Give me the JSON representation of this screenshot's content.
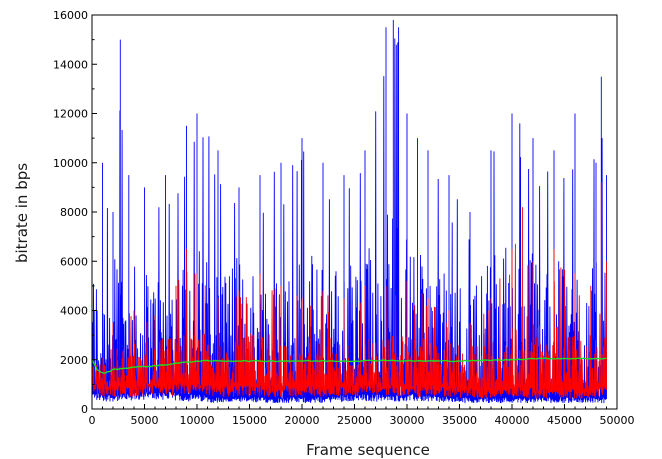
{
  "chart_data": {
    "type": "line",
    "title": "",
    "xlabel": "Frame sequence",
    "ylabel": "bitrate in bps",
    "xlim": [
      0,
      50000
    ],
    "ylim": [
      0,
      16000
    ],
    "x_ticks": [
      0,
      5000,
      10000,
      15000,
      20000,
      25000,
      30000,
      35000,
      40000,
      45000,
      50000
    ],
    "y_ticks": [
      0,
      2000,
      4000,
      6000,
      8000,
      10000,
      12000,
      14000,
      16000
    ],
    "x_tick_labels": [
      "0",
      "5000",
      "10000",
      "15000",
      "20000",
      "25000",
      "30000",
      "35000",
      "40000",
      "45000",
      "50000"
    ],
    "y_tick_labels": [
      "0",
      "2000",
      "4000",
      "6000",
      "8000",
      "10000",
      "12000",
      "14000",
      "16000"
    ],
    "grid": false,
    "legend": "none",
    "series": [
      {
        "color": "#0000ff",
        "style": "dense-bursty",
        "x": [
          0,
          1000,
          2000,
          2700,
          3500,
          5000,
          7000,
          9000,
          10000,
          12000,
          14000,
          16000,
          18000,
          20000,
          22000,
          24000,
          26000,
          28000,
          28700,
          29200,
          30000,
          31000,
          32000,
          34000,
          36000,
          38000,
          40000,
          42000,
          44000,
          46000,
          48000,
          48500,
          49000
        ],
        "peak": [
          7500,
          10000,
          8000,
          15000,
          9500,
          9000,
          9500,
          11500,
          12000,
          10500,
          9000,
          9500,
          10000,
          11000,
          10000,
          9500,
          10500,
          15500,
          15800,
          15500,
          12000,
          11000,
          10500,
          9500,
          8000,
          10500,
          12000,
          11000,
          10500,
          12000,
          10000,
          13500,
          9500
        ],
        "upper": [
          6000,
          6500,
          6000,
          6500,
          6000,
          5800,
          6000,
          6500,
          6800,
          6500,
          6200,
          6000,
          6000,
          6300,
          6200,
          6000,
          6500,
          8500,
          9000,
          8500,
          7000,
          6500,
          6000,
          5500,
          5000,
          6500,
          7000,
          6500,
          6000,
          6500,
          6000,
          6500,
          6000
        ],
        "lower": [
          600,
          500,
          500,
          500,
          500,
          600,
          600,
          500,
          500,
          400,
          400,
          400,
          400,
          400,
          400,
          500,
          500,
          500,
          500,
          500,
          500,
          500,
          500,
          400,
          400,
          400,
          400,
          400,
          400,
          400,
          400,
          400,
          400
        ]
      },
      {
        "color": "#ff0000",
        "style": "dense-bursty",
        "x": [
          0,
          2000,
          4000,
          6000,
          8000,
          9000,
          10000,
          12000,
          14000,
          16000,
          18000,
          20000,
          22000,
          24000,
          26000,
          28000,
          30000,
          32000,
          34000,
          36000,
          38000,
          40000,
          41000,
          42000,
          44000,
          46000,
          47500,
          48500,
          49000
        ],
        "peak": [
          2800,
          3500,
          4000,
          3800,
          5000,
          6500,
          5500,
          4500,
          4800,
          5500,
          5000,
          4500,
          4800,
          4500,
          5000,
          5000,
          5200,
          4500,
          4000,
          3500,
          4500,
          6500,
          8200,
          6000,
          6500,
          5500,
          5000,
          9200,
          6000
        ],
        "upper": [
          2200,
          2600,
          2800,
          2800,
          3000,
          3500,
          3200,
          3000,
          3000,
          3200,
          3000,
          2900,
          2900,
          2900,
          3000,
          3100,
          3100,
          2900,
          2700,
          2600,
          2900,
          3500,
          4000,
          3500,
          3600,
          3200,
          3000,
          4000,
          3000
        ],
        "lower": [
          900,
          800,
          800,
          900,
          900,
          900,
          900,
          800,
          800,
          800,
          800,
          800,
          800,
          800,
          900,
          900,
          800,
          800,
          800,
          700,
          700,
          800,
          800,
          700,
          700,
          700,
          700,
          800,
          800
        ]
      },
      {
        "color": "#22dd22",
        "style": "smooth",
        "x": [
          0,
          500,
          1000,
          1500,
          2000,
          3000,
          4000,
          6000,
          8000,
          10000,
          15000,
          20000,
          25000,
          28000,
          30000,
          35000,
          40000,
          42000,
          45000,
          48000,
          49000
        ],
        "values": [
          2000,
          1600,
          1450,
          1500,
          1600,
          1650,
          1700,
          1750,
          1850,
          1950,
          1950,
          1950,
          1950,
          1980,
          1950,
          1950,
          2000,
          2050,
          2050,
          2050,
          2050
        ]
      }
    ]
  }
}
